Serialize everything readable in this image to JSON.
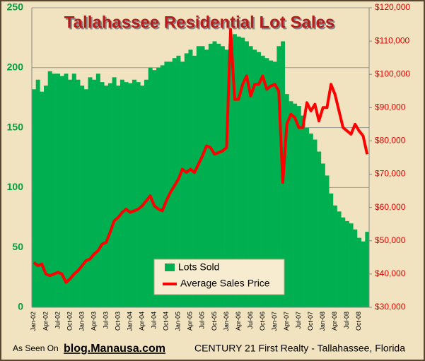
{
  "chart_data": {
    "type": "bar-line",
    "title": "Tallahassee Residential Lot Sales",
    "footer": {
      "prefix": "As Seen On",
      "site": "blog.Manausa.com",
      "credit": "CENTURY 21 First Realty - Tallahassee, Florida"
    },
    "categories": [
      "Jan-02",
      null,
      null,
      "Apr-02",
      null,
      null,
      "Jul-02",
      null,
      null,
      "Oct-02",
      null,
      null,
      "Jan-03",
      null,
      null,
      "Apr-03",
      null,
      null,
      "Jul-03",
      null,
      null,
      "Oct-03",
      null,
      null,
      "Jan-04",
      null,
      null,
      "Apr-04",
      null,
      null,
      "Jul-04",
      null,
      null,
      "Oct-04",
      null,
      null,
      "Jan-05",
      null,
      null,
      "Apr-05",
      null,
      null,
      "Jul-05",
      null,
      null,
      "Oct-05",
      null,
      null,
      "Jan-06",
      null,
      null,
      "Apr-06",
      null,
      null,
      "Jul-06",
      null,
      null,
      "Oct-06",
      null,
      null,
      "Jan-07",
      null,
      null,
      "Apr-07",
      null,
      null,
      "Jul-07",
      null,
      null,
      "Oct-07",
      null,
      null,
      "Jan-08",
      null,
      null,
      "Apr-08",
      null,
      null,
      "Jul-08",
      null,
      null,
      "Oct-08",
      null,
      null
    ],
    "series": [
      {
        "name": "Lots Sold",
        "color": "#00b050",
        "values": [
          182,
          190,
          180,
          185,
          197,
          195,
          195,
          193,
          195,
          190,
          195,
          190,
          185,
          182,
          192,
          190,
          195,
          188,
          185,
          187,
          192,
          185,
          190,
          188,
          187,
          190,
          188,
          185,
          190,
          200,
          198,
          200,
          202,
          205,
          205,
          208,
          210,
          205,
          212,
          215,
          210,
          218,
          218,
          215,
          220,
          222,
          220,
          218,
          215,
          220,
          228,
          226,
          225,
          222,
          218,
          215,
          213,
          210,
          208,
          206,
          205,
          218,
          222,
          178,
          172,
          170,
          168,
          160,
          150,
          145,
          140,
          130,
          120,
          110,
          95,
          85,
          80,
          75,
          72,
          70,
          65,
          58,
          55,
          63
        ]
      },
      {
        "name": "Average Sales Price",
        "color": "#ff0000",
        "axis": "y2",
        "values": [
          43500,
          42500,
          43000,
          40000,
          39500,
          40000,
          40500,
          40000,
          37500,
          38500,
          40000,
          41000,
          42500,
          44000,
          44500,
          46000,
          47000,
          49000,
          49500,
          52500,
          56000,
          57000,
          58500,
          59500,
          58500,
          59000,
          59500,
          60500,
          62000,
          63500,
          60500,
          59500,
          59000,
          62000,
          64500,
          66500,
          68500,
          71500,
          70500,
          71500,
          70500,
          73000,
          75500,
          78500,
          78000,
          76000,
          76500,
          77000,
          78000,
          113500,
          92500,
          92500,
          97000,
          99500,
          93500,
          97000,
          97000,
          99500,
          95500,
          96500,
          97000,
          95000,
          67500,
          85000,
          88000,
          87000,
          84000,
          84000,
          91500,
          89000,
          91000,
          86000,
          90000,
          90000,
          97000,
          94000,
          89000,
          84000,
          83000,
          82000,
          85000,
          83000,
          81500,
          76000
        ]
      }
    ],
    "ylim": [
      0,
      250
    ],
    "yticks": [
      0,
      50,
      100,
      150,
      200,
      250
    ],
    "y2lim": [
      30000,
      120000
    ],
    "y2ticks": [
      {
        "value": 30000,
        "label": "$30,000"
      },
      {
        "value": 40000,
        "label": "$40,000"
      },
      {
        "value": 50000,
        "label": "$50,000"
      },
      {
        "value": 60000,
        "label": "$60,000"
      },
      {
        "value": 70000,
        "label": "$70,000"
      },
      {
        "value": 80000,
        "label": "$80,000"
      },
      {
        "value": 90000,
        "label": "$90,000"
      },
      {
        "value": 100000,
        "label": "$100,000"
      },
      {
        "value": 110000,
        "label": "$110,000"
      },
      {
        "value": 120000,
        "label": "$120,000"
      }
    ],
    "grid": true
  }
}
